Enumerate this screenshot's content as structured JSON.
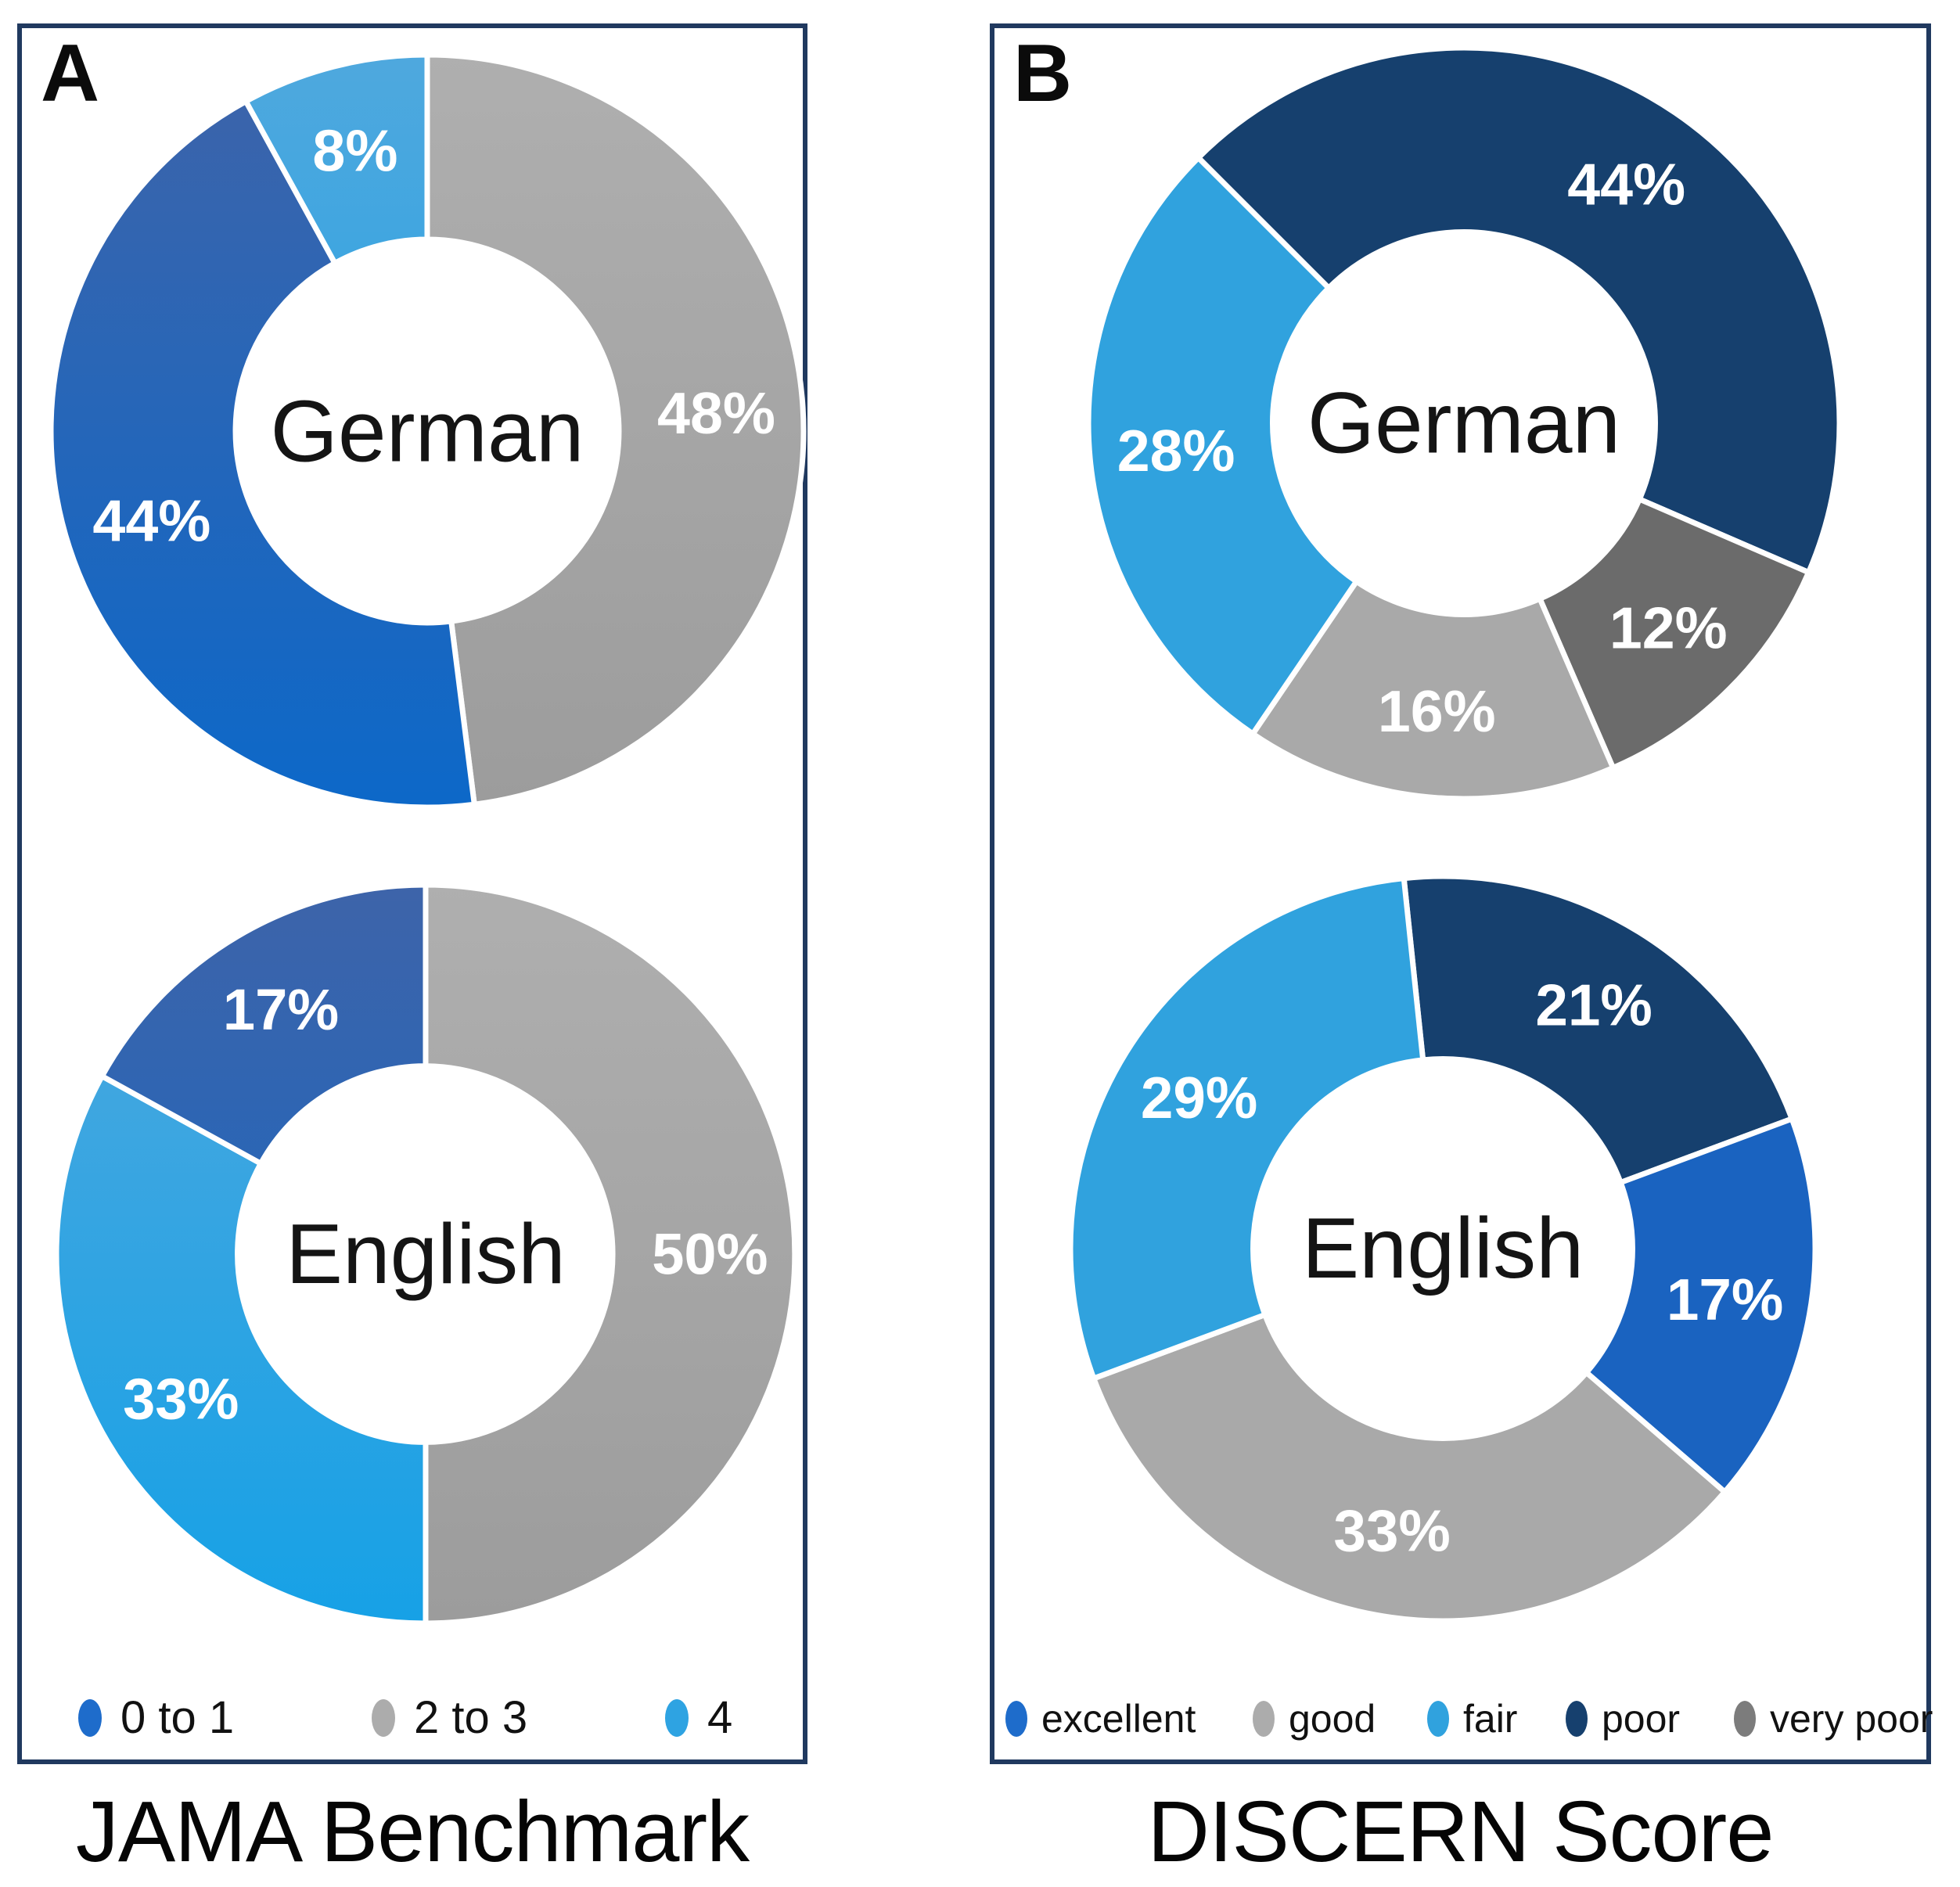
{
  "figure": {
    "background": "#ffffff",
    "border_color": "#20395F"
  },
  "panels": [
    {
      "corner_label": "A",
      "title": "JAMA Benchmark",
      "legend": [
        {
          "key": "blue",
          "label": "0 to 1"
        },
        {
          "key": "gray",
          "label": "2 to 3"
        },
        {
          "key": "lightblue",
          "label": "4"
        }
      ],
      "charts": [
        {
          "center_label": "German",
          "start_angle": 0,
          "slices": [
            {
              "key": "gray",
              "value": 48,
              "label": "48%"
            },
            {
              "key": "blue",
              "value": 44,
              "label": "44%"
            },
            {
              "key": "lightblue",
              "value": 8,
              "label": "8%"
            }
          ]
        },
        {
          "center_label": "English",
          "start_angle": 0,
          "slices": [
            {
              "key": "gray",
              "value": 50,
              "label": "50%"
            },
            {
              "key": "lightblue",
              "value": 33,
              "label": "33%"
            },
            {
              "key": "blue",
              "value": 17,
              "label": "17%"
            }
          ]
        }
      ]
    },
    {
      "corner_label": "B",
      "title": "DISCERN Score",
      "legend": [
        {
          "key": "excellent",
          "label": "excellent"
        },
        {
          "key": "good",
          "label": "good"
        },
        {
          "key": "fair",
          "label": "fair"
        },
        {
          "key": "poor",
          "label": "poor"
        },
        {
          "key": "verypoor",
          "label": "very poor"
        }
      ],
      "charts": [
        {
          "center_label": "German",
          "start_angle": -45,
          "slices": [
            {
              "key": "poor",
              "value": 44,
              "label": "44%"
            },
            {
              "key": "verypoor",
              "value": 12,
              "label": "12%"
            },
            {
              "key": "good",
              "value": 16,
              "label": "16%"
            },
            {
              "key": "fair",
              "value": 28,
              "label": "28%"
            }
          ]
        },
        {
          "center_label": "English",
          "start_angle": -6,
          "slices": [
            {
              "key": "poor",
              "value": 21,
              "label": "21%"
            },
            {
              "key": "excellent",
              "value": 17,
              "label": "17%"
            },
            {
              "key": "good",
              "value": 33,
              "label": "33%"
            },
            {
              "key": "fair",
              "value": 29,
              "label": "29%"
            }
          ]
        }
      ]
    }
  ],
  "colors": {
    "blue": {
      "fill": "#0C68C9",
      "fill_top": "#3E64A9",
      "legend": "#1E6CCB"
    },
    "gray": {
      "fill": "#9C9C9C",
      "fill_top": "#AFAFAF",
      "legend": "#ACACAC"
    },
    "lightblue": {
      "fill": "#16A1E6",
      "fill_top": "#4FA8DE",
      "legend": "#2EA3E2"
    },
    "excellent": {
      "fill": "#1A63C0",
      "fill_top": "#1A63C0",
      "legend": "#1E6CCB"
    },
    "good": {
      "fill": "#A9A9A9",
      "fill_top": "#A9A9A9",
      "legend": "#ACACAC"
    },
    "fair": {
      "fill": "#30A2DE",
      "fill_top": "#30A2DE",
      "legend": "#30A2DE"
    },
    "poor": {
      "fill": "#16406E",
      "fill_top": "#16406E",
      "legend": "#16406E"
    },
    "verypoor": {
      "fill": "#6B6B6B",
      "fill_top": "#6B6B6B",
      "legend": "#7C7C7C"
    }
  },
  "chart_data": [
    {
      "type": "pie",
      "subtype": "donut",
      "title": "JAMA Benchmark",
      "legend_position": "bottom",
      "categories": [
        "0 to 1",
        "2 to 3",
        "4"
      ],
      "series": [
        {
          "name": "German",
          "values": [
            44,
            48,
            8
          ]
        },
        {
          "name": "English",
          "values": [
            17,
            50,
            33
          ]
        }
      ]
    },
    {
      "type": "pie",
      "subtype": "donut",
      "title": "DISCERN Score",
      "legend_position": "bottom",
      "categories": [
        "excellent",
        "good",
        "fair",
        "poor",
        "very poor"
      ],
      "series": [
        {
          "name": "German",
          "values": [
            0,
            16,
            28,
            44,
            12
          ]
        },
        {
          "name": "English",
          "values": [
            17,
            33,
            29,
            21,
            0
          ]
        }
      ]
    }
  ]
}
